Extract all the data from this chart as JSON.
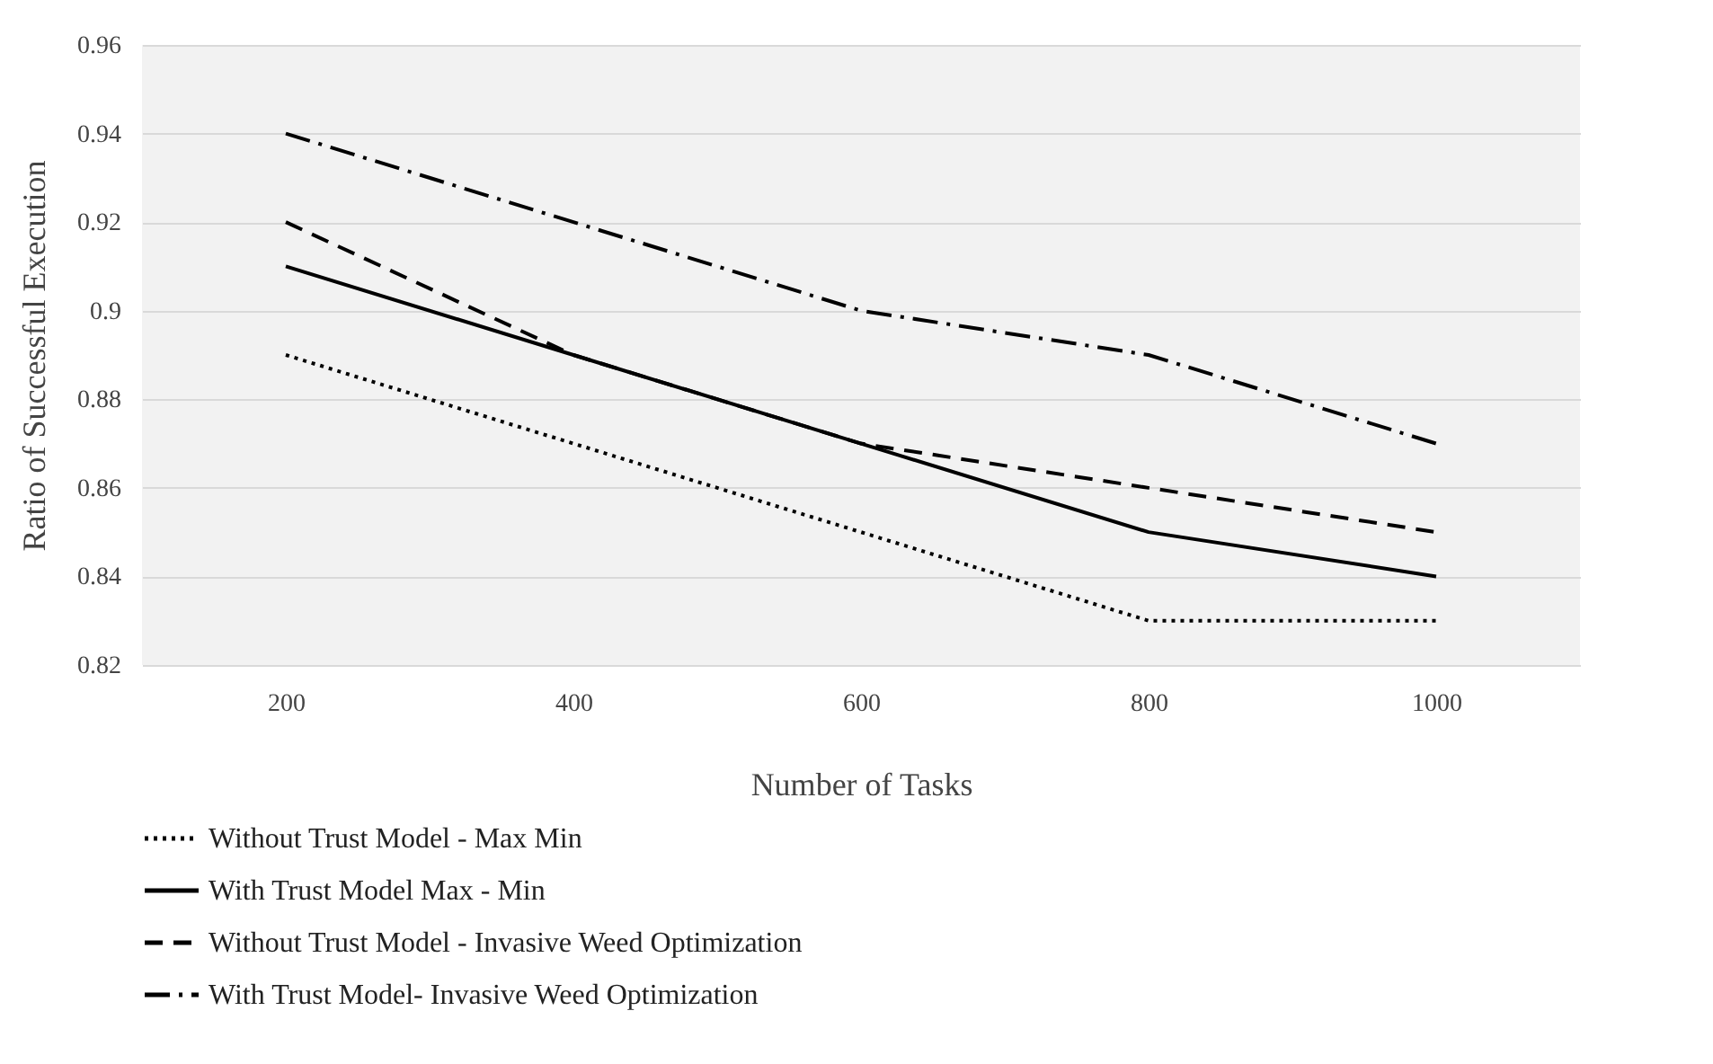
{
  "chart_data": {
    "type": "line",
    "xlabel": "Number of Tasks",
    "ylabel": "Ratio of Successful Execution",
    "categories": [
      "200",
      "400",
      "600",
      "800",
      "1000"
    ],
    "series": [
      {
        "name": "Without Trust Model - Max Min",
        "color": "#000000",
        "line_style": "dotted",
        "values": [
          0.89,
          0.87,
          0.85,
          0.83,
          0.83
        ]
      },
      {
        "name": "With Trust Model Max - Min",
        "color": "#000000",
        "line_style": "solid",
        "values": [
          0.91,
          0.89,
          0.87,
          0.85,
          0.84
        ]
      },
      {
        "name": "Without Trust Model - Invasive Weed Optimization",
        "color": "#000000",
        "line_style": "dashed",
        "values": [
          0.92,
          0.89,
          0.87,
          0.86,
          0.85
        ]
      },
      {
        "name": "With Trust Model- Invasive Weed Optimization",
        "color": "#000000",
        "line_style": "dashdot",
        "values": [
          0.94,
          0.92,
          0.9,
          0.89,
          0.87
        ]
      }
    ],
    "ylim": [
      0.82,
      0.96
    ],
    "yticks": [
      0.82,
      0.84,
      0.86,
      0.88,
      0.9,
      0.92,
      0.94,
      0.96
    ],
    "grid": "y",
    "legend": "bottom",
    "marker": "none"
  }
}
